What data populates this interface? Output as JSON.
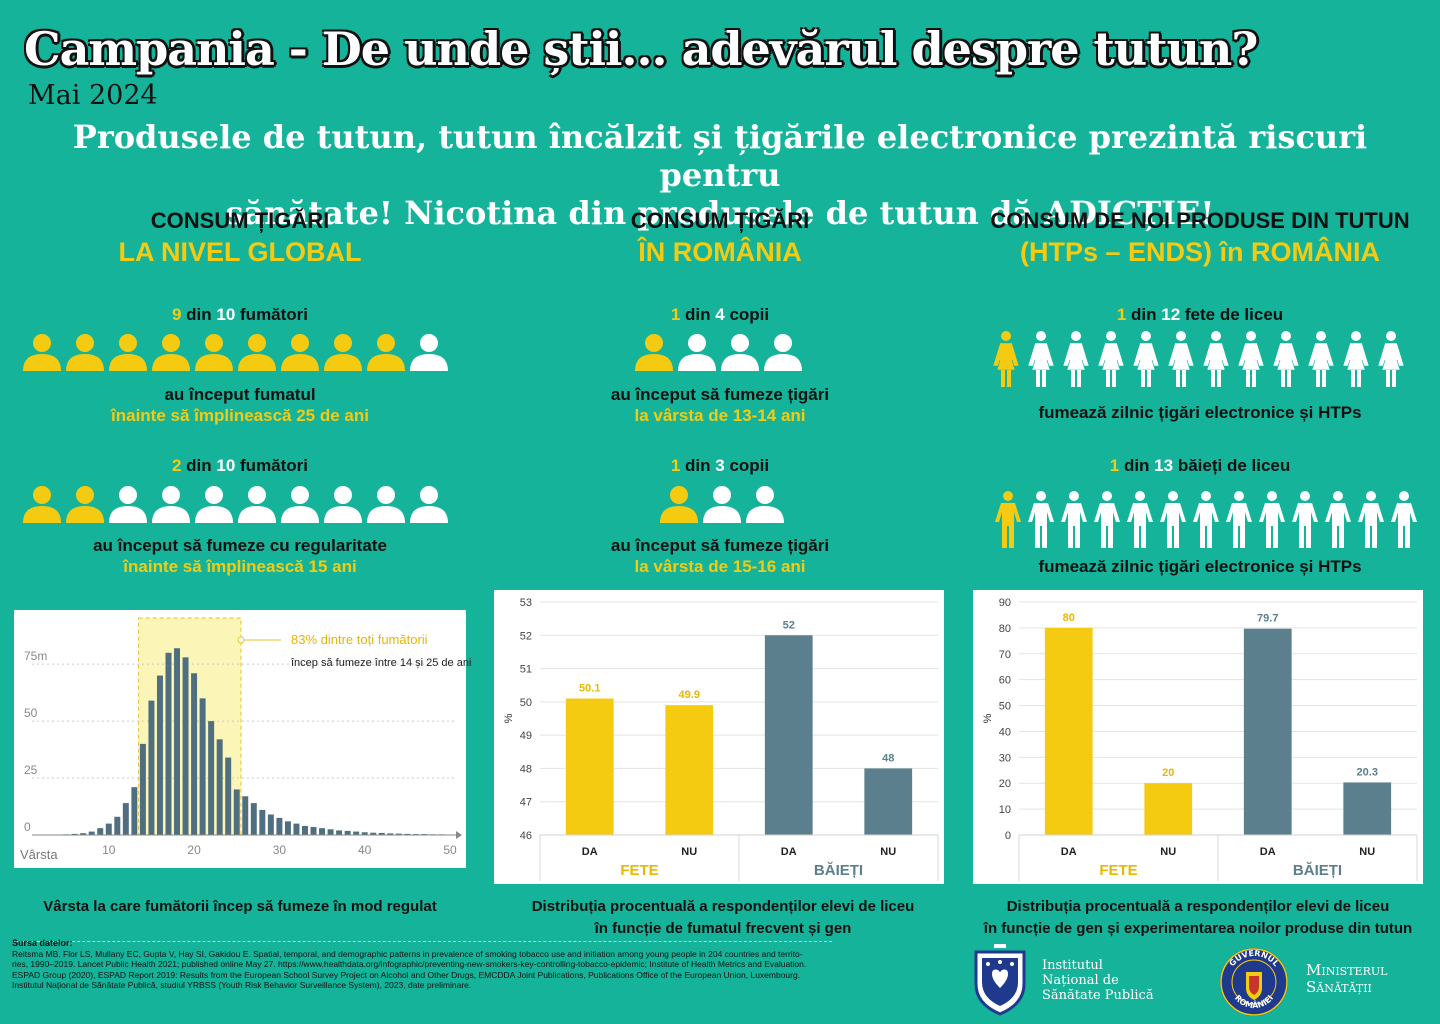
{
  "header": {
    "title": "Campania -  De unde știi... adevărul despre tutun?",
    "subtitle": "Mai 2024",
    "headline_1": "Produsele de tutun, tutun încălzit și țigările electronice prezintă riscuri pentru",
    "headline_2": "sănătate! Nicotina din produsele de tutun dă ADICȚIE!"
  },
  "columns": [
    {
      "title": "CONSUM ȚIGĂRI",
      "subtitle": "LA NIVEL GLOBAL"
    },
    {
      "title": "CONSUM ȚIGĂRI",
      "subtitle": "ÎN ROMÂNIA"
    },
    {
      "title": "CONSUM DE NOI PRODUSE DIN TUTUN",
      "subtitle": "(HTPs – ENDS) în ROMÂNIA"
    }
  ],
  "stats": {
    "global_1": {
      "n": "9",
      "mid": " din ",
      "d": "10",
      "rest": " fumători",
      "line1": "au început fumatul",
      "line2": "înainte să împlinească 25 de ani",
      "filled": 9,
      "total": 10
    },
    "global_2": {
      "n": "2",
      "mid": " din ",
      "d": "10",
      "rest": " fumători",
      "line1": "au început să fumeze cu regularitate",
      "line2": "înainte să împlinească 15 ani",
      "filled": 2,
      "total": 10
    },
    "ro_1": {
      "n": "1",
      "mid": " din ",
      "d": "4",
      "rest": " copii",
      "line1": "au început să fumeze țigări",
      "line2": "la vârsta de 13-14 ani",
      "filled": 1,
      "total": 4
    },
    "ro_2": {
      "n": "1",
      "mid": " din ",
      "d": "3",
      "rest": " copii",
      "line1": "au început să fumeze țigări",
      "line2": "la vârsta de 15-16 ani",
      "filled": 1,
      "total": 3
    },
    "new_1": {
      "n": "1",
      "mid": " din ",
      "d": "12",
      "rest": " fete de liceu",
      "line1": "fumează zilnic țigări electronice și HTPs",
      "filled": 1,
      "total": 12
    },
    "new_2": {
      "n": "1",
      "mid": " din ",
      "d": "13",
      "rest": " băieți de liceu",
      "line1": "fumează zilnic țigări electronice și HTPs",
      "filled": 1,
      "total": 13
    }
  },
  "colors": {
    "yellow": "#f5cb12",
    "white": "#ffffff",
    "slate": "#5b7f8c",
    "teal": "#14b39a",
    "hist": "#4f6f80"
  },
  "chart_data": [
    {
      "type": "bar",
      "title": "",
      "xlabel": "Vârsta",
      "ylabel": "",
      "annotation_1": "83% dintre toți fumătorii",
      "annotation_2": "încep să fumeze între 14 și 25 de ani",
      "ytick_labels": [
        "0",
        "25",
        "50",
        "75m"
      ],
      "yticks": [
        0,
        25,
        50,
        75
      ],
      "xticks": [
        10,
        20,
        30,
        40,
        50
      ],
      "xlim": [
        1,
        50
      ],
      "ylim": [
        0,
        90
      ],
      "highlight_range": [
        14,
        25
      ],
      "x": [
        5,
        6,
        7,
        8,
        9,
        10,
        11,
        12,
        13,
        14,
        15,
        16,
        17,
        18,
        19,
        20,
        21,
        22,
        23,
        24,
        25,
        26,
        27,
        28,
        29,
        30,
        31,
        32,
        33,
        34,
        35,
        36,
        37,
        38,
        39,
        40,
        41,
        42,
        43,
        44,
        45,
        46,
        47,
        48,
        49,
        50
      ],
      "values": [
        0.3,
        0.5,
        0.8,
        1.5,
        3,
        5,
        8,
        14,
        21,
        40,
        59,
        70,
        80,
        82,
        78,
        71,
        60,
        50,
        42,
        34,
        20,
        17,
        14,
        11,
        9,
        7.5,
        6,
        5,
        4,
        3.5,
        3,
        2.5,
        2,
        1.8,
        1.5,
        1.2,
        1,
        0.9,
        0.7,
        0.6,
        0.5,
        0.4,
        0.4,
        0.3,
        0.3,
        0.2
      ],
      "caption": "Vârsta la care fumătorii încep să fumeze în mod regulat"
    },
    {
      "type": "bar",
      "title": "",
      "ylabel": "%",
      "ylim": [
        46,
        53
      ],
      "yticks": [
        46,
        47,
        48,
        49,
        50,
        51,
        52,
        53
      ],
      "categories": [
        "DA",
        "NU",
        "DA",
        "NU"
      ],
      "groups": [
        "FETE",
        "BĂIEȚI"
      ],
      "values": [
        50.1,
        49.9,
        52,
        48
      ],
      "labels": [
        "50.1",
        "49.9",
        "52",
        "48"
      ],
      "caption_1": "Distribuția procentuală a respondenților elevi de liceu",
      "caption_2": "în funcție de fumatul frecvent și gen"
    },
    {
      "type": "bar",
      "title": "",
      "ylabel": "%",
      "ylim": [
        0,
        90
      ],
      "yticks": [
        0,
        10,
        20,
        30,
        40,
        50,
        60,
        70,
        80,
        90
      ],
      "categories": [
        "DA",
        "NU",
        "DA",
        "NU"
      ],
      "groups": [
        "FETE",
        "BĂIEȚI"
      ],
      "values": [
        80,
        20,
        79.7,
        20.3
      ],
      "labels": [
        "80",
        "20",
        "79.7",
        "20.3"
      ],
      "caption_1": "Distribuția procentuală a respondenților elevi de liceu",
      "caption_2": "în funcție de gen și experimentarea noilor produse din tutun"
    }
  ],
  "sources": {
    "label": "Sursa datelor:",
    "line_1": "Reitsma MB, Flor LS, Mullany EC, Gupta V, Hay SI, Gakidou E. Spatial, temporal, and demographic patterns in prevalence of smoking tobacco use and initiation among young people in 204 countries and territo-",
    "line_2": "ries, 1990–2019. Lancet Public Health 2021; published online May 27. https://www.healthdata.org/infographic/preventing-new-smokers-key-controlling-tobacco-epidemic; Institute of Health Metrics and Evaluation.",
    "line_3": "ESPAD Group (2020), ESPAD Report 2019: Results from the European School Survey Project on Alcohol and Other Drugs, EMCDDA Joint Publications, Publications Office of the European Union, Luxembourg.",
    "line_4": "Institutul Național de Sănătate Publică, studiul YRBSS (Youth Risk Behavior Surveillance System), 2023, date preliminare."
  },
  "logos": {
    "insp_1": "Institutul",
    "insp_2": "Național de",
    "insp_3": "Sănătate Publică",
    "ms_1": "Ministerul",
    "ms_2": "Sănătății",
    "seal_top": "GUVERNUL",
    "seal_bottom": "ROMÂNIEI"
  }
}
